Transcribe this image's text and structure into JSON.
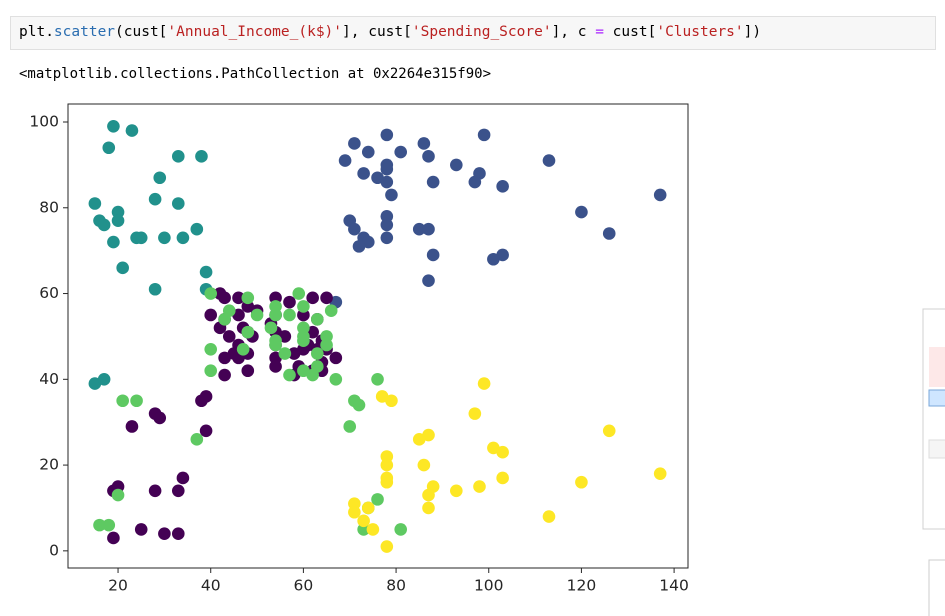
{
  "code": {
    "tokens": [
      {
        "text": "plt.",
        "color": "#000000"
      },
      {
        "text": "scatter",
        "color": "#2a6db0"
      },
      {
        "text": "(cust[",
        "color": "#000000"
      },
      {
        "text": "'Annual_Income_(k$)'",
        "color": "#ba2121"
      },
      {
        "text": "], cust[",
        "color": "#000000"
      },
      {
        "text": "'Spending_Score'",
        "color": "#ba2121"
      },
      {
        "text": "], c ",
        "color": "#000000"
      },
      {
        "text": "=",
        "color": "#aa22ff"
      },
      {
        "text": " cust[",
        "color": "#000000"
      },
      {
        "text": "'Clusters'",
        "color": "#ba2121"
      },
      {
        "text": "])",
        "color": "#000000"
      }
    ]
  },
  "output": "<matplotlib.collections.PathCollection at 0x2264e315f90>",
  "chart_data": {
    "type": "scatter",
    "xlim": [
      9.2,
      143.0
    ],
    "ylim": [
      -4.0,
      104.2
    ],
    "xticks": [
      20,
      40,
      60,
      80,
      100,
      120,
      140
    ],
    "yticks": [
      0,
      20,
      40,
      60,
      80,
      100
    ],
    "series": [
      {
        "color": "#21918c",
        "x": [
          19,
          23,
          18,
          33,
          38,
          29,
          15,
          28,
          33,
          20,
          16,
          20,
          17,
          37,
          19,
          24,
          25,
          30,
          34,
          21,
          39,
          28,
          39,
          15,
          17
        ],
        "y": [
          99,
          98,
          94,
          92,
          92,
          87,
          81,
          82,
          81,
          79,
          77,
          77,
          76,
          75,
          72,
          73,
          73,
          73,
          73,
          66,
          65,
          61,
          61,
          39,
          40
        ]
      },
      {
        "color": "#3b528b",
        "x": [
          78,
          99,
          86,
          71,
          74,
          81,
          87,
          69,
          113,
          93,
          78,
          78,
          76,
          98,
          73,
          97,
          78,
          88,
          103,
          137,
          79,
          120,
          78,
          70,
          78,
          71,
          85,
          87,
          126,
          73,
          78,
          74,
          72,
          88,
          103,
          101,
          87,
          67
        ],
        "y": [
          97,
          97,
          95,
          95,
          93,
          93,
          92,
          91,
          91,
          90,
          90,
          89,
          87,
          88,
          88,
          86,
          86,
          86,
          85,
          83,
          83,
          79,
          78,
          77,
          76,
          75,
          75,
          75,
          74,
          73,
          73,
          72,
          71,
          69,
          69,
          68,
          63,
          58
        ]
      },
      {
        "color": "#440154",
        "x": [
          42,
          43,
          46,
          54,
          57,
          62,
          65,
          48,
          50,
          46,
          40,
          43,
          54,
          60,
          63,
          53,
          42,
          47,
          48,
          54,
          62,
          44,
          49,
          56,
          64,
          46,
          54,
          61,
          63,
          65,
          45,
          48,
          58,
          60,
          43,
          46,
          54,
          67,
          64,
          54,
          59,
          62,
          48,
          64,
          58,
          43,
          38,
          39,
          28,
          29,
          23,
          39,
          34,
          20,
          19,
          28,
          33,
          25,
          30,
          33,
          19
        ],
        "y": [
          60,
          59,
          59,
          59,
          58,
          59,
          59,
          57,
          56,
          55,
          55,
          54,
          55,
          55,
          54,
          53,
          52,
          52,
          51,
          51,
          51,
          50,
          50,
          50,
          49,
          48,
          48,
          48,
          47,
          47,
          46,
          46,
          46,
          47,
          45,
          45,
          45,
          45,
          44,
          43,
          43,
          42,
          42,
          42,
          41,
          41,
          35,
          36,
          32,
          31,
          29,
          28,
          17,
          15,
          14,
          14,
          14,
          5,
          4,
          4,
          3
        ]
      },
      {
        "color": "#5ec962",
        "x": [
          40,
          59,
          48,
          54,
          60,
          66,
          44,
          50,
          57,
          63,
          54,
          60,
          43,
          53,
          48,
          60,
          65,
          54,
          60,
          65,
          40,
          47,
          54,
          63,
          56,
          63,
          60,
          57,
          62,
          67,
          40,
          76,
          72,
          71,
          21,
          24,
          37,
          70,
          20,
          16,
          18,
          74,
          76,
          73,
          81
        ],
        "y": [
          60,
          60,
          59,
          57,
          57,
          56,
          56,
          55,
          55,
          54,
          55,
          52,
          54,
          52,
          51,
          50,
          50,
          49,
          49,
          48,
          47,
          47,
          48,
          46,
          46,
          43,
          42,
          41,
          41,
          40,
          42,
          40,
          34,
          35,
          35,
          35,
          26,
          29,
          13,
          6,
          6,
          10,
          12,
          5,
          5
        ]
      },
      {
        "color": "#fde725",
        "x": [
          99,
          77,
          79,
          97,
          87,
          85,
          126,
          101,
          103,
          78,
          78,
          86,
          78,
          78,
          88,
          98,
          93,
          87,
          103,
          120,
          137,
          71,
          71,
          74,
          87,
          113,
          73,
          75,
          78
        ],
        "y": [
          39,
          36,
          35,
          32,
          27,
          26,
          28,
          24,
          23,
          22,
          20,
          20,
          17,
          16,
          15,
          15,
          14,
          13,
          17,
          16,
          18,
          11,
          9,
          10,
          10,
          8,
          7,
          5,
          1
        ]
      }
    ]
  }
}
